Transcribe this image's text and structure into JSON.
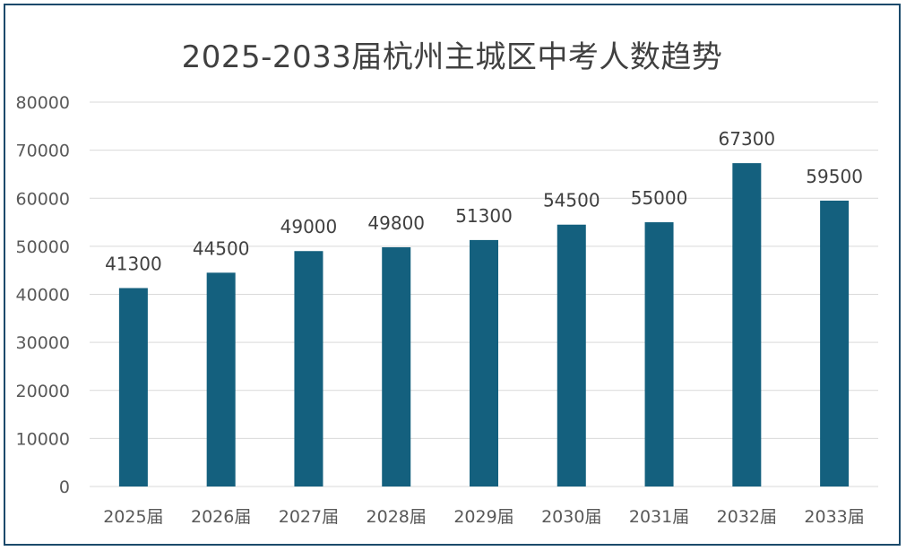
{
  "chart_data": {
    "type": "bar",
    "title": "2025-2033届杭州主城区中考人数趋势",
    "xlabel": "",
    "ylabel": "",
    "categories": [
      "2025届",
      "2026届",
      "2027届",
      "2028届",
      "2029届",
      "2030届",
      "2031届",
      "2032届",
      "2033届"
    ],
    "values": [
      41300,
      44500,
      49000,
      49800,
      51300,
      54500,
      55000,
      67300,
      59500
    ],
    "ylim": [
      0,
      80000
    ],
    "yticks": [
      0,
      10000,
      20000,
      30000,
      40000,
      50000,
      60000,
      70000,
      80000
    ],
    "grid": true,
    "legend": "none",
    "colors": {
      "bar": "#14607e",
      "grid": "#d9d9d9",
      "border": "#1b4a6b",
      "text": "#595959"
    }
  }
}
